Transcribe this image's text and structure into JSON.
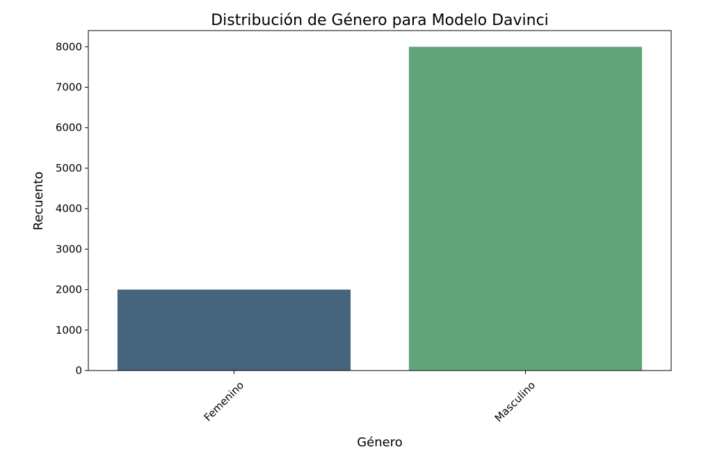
{
  "chart_data": {
    "type": "bar",
    "title": "Distribución de Género para Modelo Davinci",
    "xlabel": "Género",
    "ylabel": "Recuento",
    "categories": [
      "Femenino",
      "Masculino"
    ],
    "values": [
      2000,
      8000
    ],
    "colors": [
      "#46647d",
      "#62a57c"
    ],
    "ylim": [
      0,
      8400
    ],
    "yticks": [
      0,
      1000,
      2000,
      3000,
      4000,
      5000,
      6000,
      7000,
      8000
    ],
    "ytick_labels": [
      "0",
      "1000",
      "2000",
      "3000",
      "4000",
      "5000",
      "6000",
      "7000",
      "8000"
    ],
    "xtick_rotation_deg": 45,
    "grid": false,
    "legend": "none"
  }
}
